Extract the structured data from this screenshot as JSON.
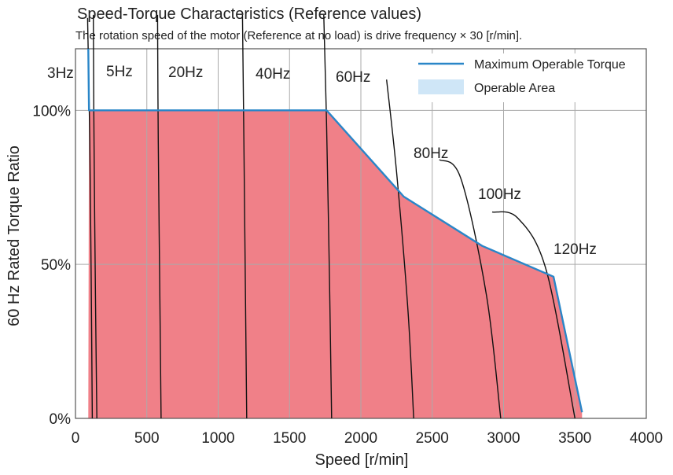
{
  "chart_data": {
    "type": "area",
    "title": "Speed-Torque Characteristics (Reference values)",
    "subtitle": "The rotation speed of the motor (Reference at no load) is drive frequency × 30 [r/min].",
    "xlabel": "Speed [r/min]",
    "ylabel": "60 Hz Rated Torque Ratio",
    "xlim": [
      0,
      4000
    ],
    "ylim": [
      0,
      120
    ],
    "xticks": [
      0,
      500,
      1000,
      1500,
      2000,
      2500,
      3000,
      3500,
      4000
    ],
    "xtick_labels": [
      "0",
      "500",
      "1000",
      "1500",
      "2000",
      "2500",
      "3000",
      "3500",
      "4000"
    ],
    "yticks": [
      0,
      50,
      100
    ],
    "ytick_labels": [
      "0%",
      "50%",
      "100%"
    ],
    "grid": true,
    "colors": {
      "max_torque_line": "#2a86c8",
      "operable_fill": "#f08088",
      "legend_area_swatch": "#cfe6f7",
      "frequency_curve": "#111111",
      "grid": "#aaaaaa"
    },
    "legend": [
      {
        "label": "Maximum Operable Torque",
        "kind": "line"
      },
      {
        "label": "Operable Area",
        "kind": "area"
      }
    ],
    "max_operable_torque": {
      "x": [
        90,
        95,
        1760,
        2300,
        2850,
        3350,
        3550
      ],
      "y": [
        120,
        100,
        100,
        72,
        56,
        46,
        2
      ]
    },
    "operable_area": {
      "x": [
        90,
        95,
        1760,
        2300,
        2850,
        3350,
        3550,
        3550,
        110
      ],
      "y": [
        0,
        100,
        100,
        72,
        56,
        46,
        2,
        0,
        0
      ]
    },
    "frequency_curves": [
      {
        "label": "3Hz",
        "x": [
          85,
          100,
          110,
          118
        ],
        "y": [
          130,
          90,
          45,
          0
        ]
      },
      {
        "label": "5Hz",
        "x": [
          125,
          130,
          140,
          150
        ],
        "y": [
          138,
          90,
          40,
          0
        ]
      },
      {
        "label": "20Hz",
        "x": [
          575,
          580,
          590,
          600
        ],
        "y": [
          138,
          90,
          45,
          0
        ]
      },
      {
        "label": "40Hz",
        "x": [
          1170,
          1180,
          1190,
          1200
        ],
        "y": [
          138,
          90,
          45,
          0
        ]
      },
      {
        "label": "60Hz",
        "x": [
          1740,
          1760,
          1780,
          1795
        ],
        "y": [
          138,
          95,
          45,
          0
        ]
      },
      {
        "label": "80Hz",
        "x": [
          2180,
          2250,
          2330,
          2370
        ],
        "y": [
          110,
          80,
          35,
          0
        ]
      },
      {
        "label": "100Hz",
        "x": [
          2550,
          2700,
          2880,
          2980
        ],
        "y": [
          84,
          78,
          40,
          0
        ]
      },
      {
        "label": "120Hz",
        "x": [
          2920,
          3100,
          3300,
          3500
        ],
        "y": [
          67,
          65,
          48,
          0
        ]
      }
    ]
  }
}
